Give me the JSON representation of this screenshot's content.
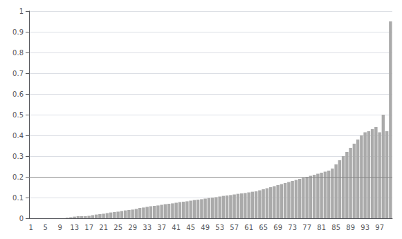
{
  "chart_data": {
    "type": "bar",
    "categories": [
      "1",
      null,
      null,
      null,
      "5",
      null,
      null,
      null,
      "9",
      null,
      null,
      null,
      "13",
      null,
      null,
      null,
      "17",
      null,
      null,
      null,
      "21",
      null,
      null,
      null,
      "25",
      null,
      null,
      null,
      "29",
      null,
      null,
      null,
      "33",
      null,
      null,
      null,
      "37",
      null,
      null,
      null,
      "41",
      null,
      null,
      null,
      "45",
      null,
      null,
      null,
      "49",
      null,
      null,
      null,
      "53",
      null,
      null,
      null,
      "57",
      null,
      null,
      null,
      "61",
      null,
      null,
      null,
      "65",
      null,
      null,
      null,
      "69",
      null,
      null,
      null,
      "73",
      null,
      null,
      null,
      "77",
      null,
      null,
      null,
      "81",
      null,
      null,
      null,
      "85",
      null,
      null,
      null,
      "89",
      null,
      null,
      null,
      "93",
      null,
      null,
      null,
      "97",
      null,
      null,
      null
    ],
    "values": [
      0.0,
      0.0,
      0.0,
      0.0,
      0.0,
      0.0,
      0.0,
      0.0,
      0.0,
      0.0,
      0.003,
      0.005,
      0.008,
      0.01,
      0.01,
      0.01,
      0.012,
      0.015,
      0.018,
      0.02,
      0.022,
      0.025,
      0.028,
      0.03,
      0.032,
      0.035,
      0.038,
      0.04,
      0.042,
      0.045,
      0.05,
      0.052,
      0.055,
      0.058,
      0.06,
      0.062,
      0.065,
      0.068,
      0.07,
      0.072,
      0.075,
      0.078,
      0.08,
      0.082,
      0.085,
      0.088,
      0.09,
      0.092,
      0.095,
      0.098,
      0.1,
      0.102,
      0.105,
      0.108,
      0.11,
      0.112,
      0.115,
      0.118,
      0.12,
      0.122,
      0.125,
      0.128,
      0.13,
      0.135,
      0.14,
      0.145,
      0.15,
      0.155,
      0.16,
      0.165,
      0.17,
      0.175,
      0.18,
      0.185,
      0.19,
      0.195,
      0.2,
      0.205,
      0.21,
      0.215,
      0.22,
      0.225,
      0.23,
      0.24,
      0.26,
      0.28,
      0.3,
      0.32,
      0.34,
      0.36,
      0.38,
      0.4,
      0.415,
      0.42,
      0.43,
      0.44,
      0.415,
      0.5,
      0.42,
      0.95
    ],
    "color": "#aaaaaa",
    "reference_line": 0.2,
    "reference_line_color": "#888888",
    "ylim": [
      0,
      1
    ],
    "yticks": [
      0,
      0.1,
      0.2,
      0.3,
      0.4,
      0.5,
      0.6,
      0.7,
      0.8,
      0.9,
      1
    ],
    "grid": true
  }
}
